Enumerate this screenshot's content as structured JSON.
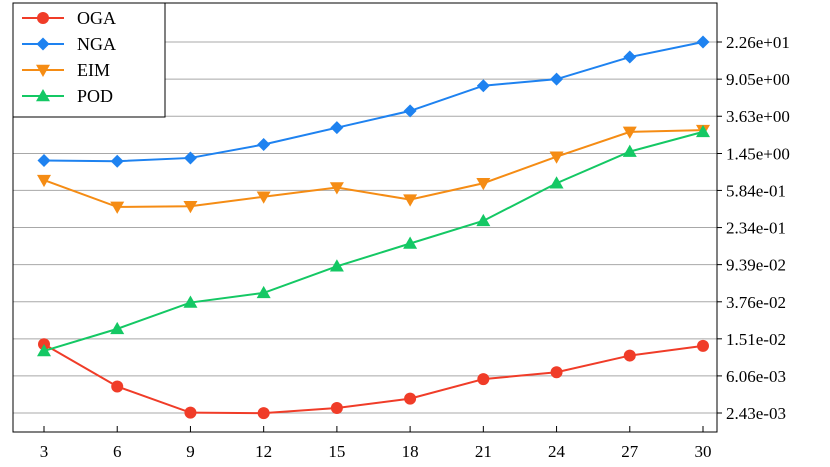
{
  "chart_data": {
    "type": "line",
    "title": "",
    "xlabel": "",
    "ylabel": "",
    "yscale": "log",
    "x": [
      3,
      6,
      9,
      12,
      15,
      18,
      21,
      24,
      27,
      30
    ],
    "x_ticks": [
      "3",
      "6",
      "9",
      "12",
      "15",
      "18",
      "21",
      "24",
      "27",
      "30"
    ],
    "y_ticks": [
      {
        "value": 0.00243,
        "label": "2.43e-03"
      },
      {
        "value": 0.00606,
        "label": "6.06e-03"
      },
      {
        "value": 0.0151,
        "label": "1.51e-02"
      },
      {
        "value": 0.0376,
        "label": "3.76e-02"
      },
      {
        "value": 0.0939,
        "label": "9.39e-02"
      },
      {
        "value": 0.234,
        "label": "2.34e-01"
      },
      {
        "value": 0.584,
        "label": "5.84e-01"
      },
      {
        "value": 1.45,
        "label": "1.45e+00"
      },
      {
        "value": 3.63,
        "label": "3.63e+00"
      },
      {
        "value": 9.05,
        "label": "9.05e+00"
      },
      {
        "value": 22.6,
        "label": "2.26e+01"
      }
    ],
    "ylim": [
      0.00182,
      30.0
    ],
    "y_axis_side": "right",
    "grid": "horizontal",
    "legend_position": "top-left",
    "series": [
      {
        "name": "OGA",
        "color": "#f03c28",
        "marker": "circle",
        "values": [
          0.0132,
          0.00467,
          0.00245,
          0.00242,
          0.00275,
          0.00346,
          0.0056,
          0.00663,
          0.01,
          0.0127
        ]
      },
      {
        "name": "NGA",
        "color": "#1e82f0",
        "marker": "diamond",
        "values": [
          1.22,
          1.2,
          1.3,
          1.81,
          2.74,
          4.14,
          7.7,
          9.05,
          15.6,
          22.6
        ]
      },
      {
        "name": "EIM",
        "color": "#f58c14",
        "marker": "triangle-down",
        "values": [
          0.753,
          0.389,
          0.395,
          0.5,
          0.627,
          0.466,
          0.697,
          1.34,
          2.47,
          2.58
        ]
      },
      {
        "name": "POD",
        "color": "#14c864",
        "marker": "triangle-up",
        "values": [
          0.0112,
          0.0193,
          0.0369,
          0.0468,
          0.0901,
          0.158,
          0.276,
          0.697,
          1.52,
          2.47
        ]
      }
    ]
  }
}
